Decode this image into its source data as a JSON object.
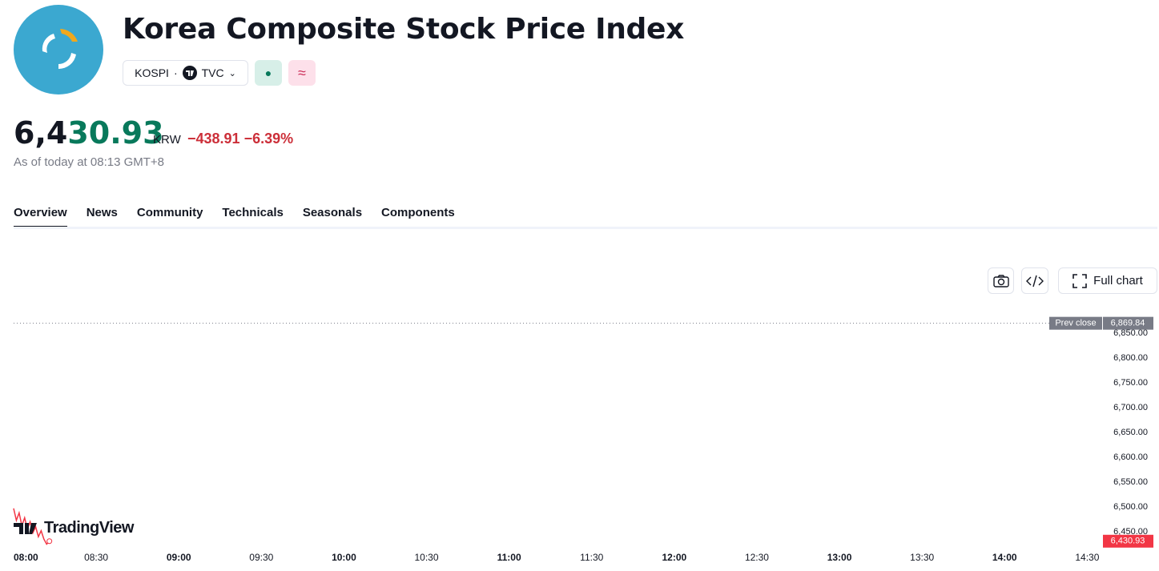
{
  "header": {
    "title": "Korea Composite Stock Price Index",
    "symbol": "KOSPI",
    "exchange": "TVC"
  },
  "quote": {
    "price_same": "6,4",
    "price_changed": "30.93",
    "currency": "KRW",
    "change": "−438.91",
    "change_percent": "−6.39%",
    "as_of": "As of today at 08:13 GMT+8"
  },
  "tabs": [
    "Overview",
    "News",
    "Community",
    "Technicals",
    "Seasonals",
    "Components"
  ],
  "toolbar": {
    "full_chart": "Full chart"
  },
  "brand": "TradingView",
  "chart_data": {
    "type": "line",
    "x": [
      480,
      481,
      482,
      483,
      484,
      485,
      486,
      487,
      488,
      489,
      490,
      491,
      492,
      493
    ],
    "series": [
      {
        "name": "KOSPI",
        "color": "#f23645",
        "values": [
          6497,
          6473,
          6488,
          6462,
          6478,
          6455,
          6470,
          6448,
          6460,
          6440,
          6452,
          6435,
          6425,
          6430.93
        ]
      }
    ],
    "last_label": "6,430.93",
    "prev_close": {
      "label": "Prev close",
      "value": 6869.84,
      "value_label": "6,869.84"
    },
    "xlim": [
      480,
      876
    ],
    "ylim": [
      6408,
      6908
    ],
    "yticks": [
      {
        "value": 6450,
        "label": "6,450.00"
      },
      {
        "value": 6500,
        "label": "6,500.00"
      },
      {
        "value": 6550,
        "label": "6,550.00"
      },
      {
        "value": 6600,
        "label": "6,600.00"
      },
      {
        "value": 6650,
        "label": "6,650.00"
      },
      {
        "value": 6700,
        "label": "6,700.00"
      },
      {
        "value": 6750,
        "label": "6,750.00"
      },
      {
        "value": 6800,
        "label": "6,800.00"
      },
      {
        "value": 6850,
        "label": "6,850.00"
      }
    ],
    "xticks": [
      {
        "value": 480,
        "label": "08:00"
      },
      {
        "value": 510,
        "label": "08:30"
      },
      {
        "value": 540,
        "label": "09:00"
      },
      {
        "value": 570,
        "label": "09:30"
      },
      {
        "value": 600,
        "label": "10:00"
      },
      {
        "value": 630,
        "label": "10:30"
      },
      {
        "value": 660,
        "label": "11:00"
      },
      {
        "value": 690,
        "label": "11:30"
      },
      {
        "value": 720,
        "label": "12:00"
      },
      {
        "value": 750,
        "label": "12:30"
      },
      {
        "value": 780,
        "label": "13:00"
      },
      {
        "value": 810,
        "label": "13:30"
      },
      {
        "value": 840,
        "label": "14:00"
      },
      {
        "value": 870,
        "label": "14:30"
      }
    ]
  }
}
